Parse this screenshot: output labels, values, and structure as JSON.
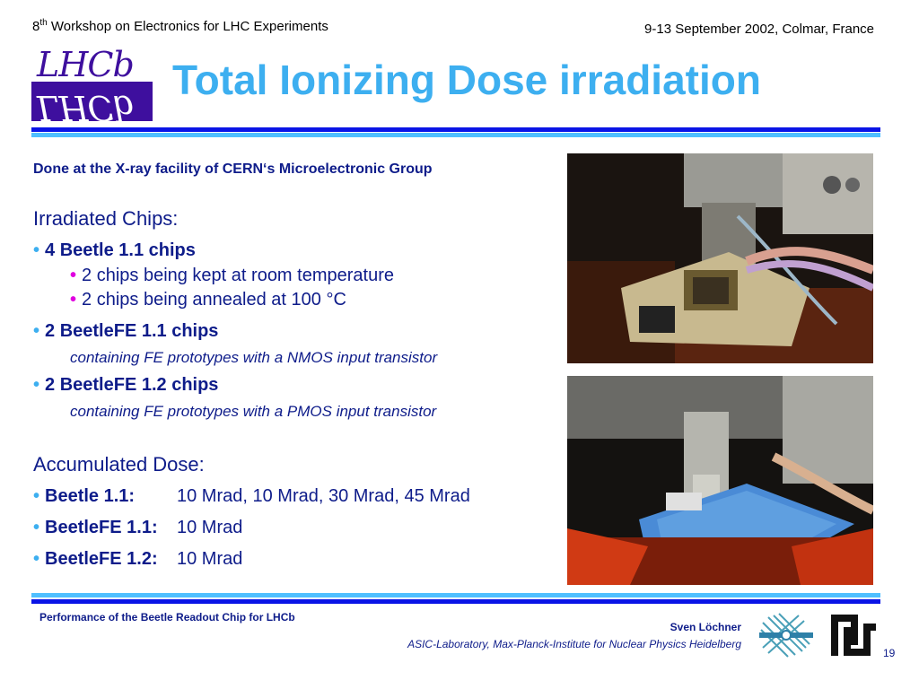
{
  "header": {
    "workshop_prefix": "8",
    "workshop_sup": "th",
    "workshop_rest": " Workshop on Electronics for LHC Experiments",
    "date_location": "9-13 September 2002, Colmar, France"
  },
  "logo": {
    "text": "LHCb",
    "text_reflected": "LHCb"
  },
  "title": "Total Ionizing Dose irradiation",
  "subtitle": "Done at the X-ray facility of CERN‘s Microelectronic Group",
  "irradiated": {
    "heading": "Irradiated Chips:",
    "beetle": "4 Beetle 1.1 chips",
    "beetle_sub1": "2 chips being kept at room temperature",
    "beetle_sub2": "2 chips being annealed at 100 °C",
    "fe11": "2 BeetleFE 1.1 chips",
    "fe11_note": "containing FE prototypes with a NMOS input transistor",
    "fe12": "2 BeetleFE 1.2 chips",
    "fe12_note": "containing FE prototypes with a PMOS input transistor"
  },
  "accumulated": {
    "heading": "Accumulated Dose:",
    "rows": [
      {
        "label": "Beetle 1.1:",
        "value": "10 Mrad, 10 Mrad, 30 Mrad, 45 Mrad"
      },
      {
        "label": "BeetleFE 1.1:",
        "value": "10 Mrad"
      },
      {
        "label": "BeetleFE 1.2:",
        "value": "10 Mrad"
      }
    ]
  },
  "footer": {
    "talk_title": "Performance of the Beetle Readout Chip for LHCb",
    "author": "Sven Löchner",
    "institute": "ASIC-Laboratory, Max-Planck-Institute for Nuclear Physics Heidelberg",
    "page": "19"
  },
  "colors": {
    "title": "#3daff0",
    "text_navy": "#0e1c8a",
    "rule_dark": "#0a14e6",
    "rule_light": "#4fbfff",
    "logo_bg": "#3e0f9e",
    "sub_bullet": "#e000e0"
  },
  "icons": {
    "bullet": "bullet-icon",
    "mpi": "mpi-logo-icon",
    "heidelberg": "heidelberg-logo-icon"
  }
}
